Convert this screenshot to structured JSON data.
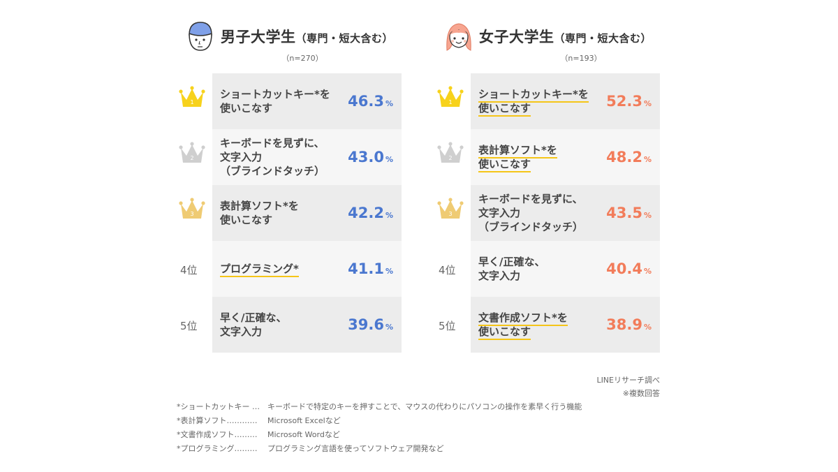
{
  "chart_data": [
    {
      "type": "table",
      "title": "男子大学生",
      "subtitle": "（専門・短大含む）",
      "n_label": "（n=270）",
      "unit": "%",
      "rows": [
        {
          "rank": "1",
          "lines": [
            "ショートカットキー*を",
            "使いこなす"
          ],
          "value": "46.3",
          "underline": false
        },
        {
          "rank": "2",
          "lines": [
            "キーボードを見ずに、",
            "文字入力",
            "（ブラインドタッチ）"
          ],
          "value": "43.0",
          "underline": false
        },
        {
          "rank": "3",
          "lines": [
            "表計算ソフト*を",
            "使いこなす"
          ],
          "value": "42.2",
          "underline": false
        },
        {
          "rank": "4位",
          "lines": [
            "プログラミング*"
          ],
          "value": "41.1",
          "underline": true
        },
        {
          "rank": "5位",
          "lines": [
            "早く/正確な、",
            "文字入力"
          ],
          "value": "39.6",
          "underline": false
        }
      ]
    },
    {
      "type": "table",
      "title": "女子大学生",
      "subtitle": "（専門・短大含む）",
      "n_label": "（n=193）",
      "unit": "%",
      "rows": [
        {
          "rank": "1",
          "lines": [
            "ショートカットキー*を",
            "使いこなす"
          ],
          "value": "52.3",
          "underline": true
        },
        {
          "rank": "2",
          "lines": [
            "表計算ソフト*を",
            "使いこなす"
          ],
          "value": "48.2",
          "underline": true
        },
        {
          "rank": "3",
          "lines": [
            "キーボードを見ずに、",
            "文字入力",
            "（ブラインドタッチ）"
          ],
          "value": "43.5",
          "underline": false
        },
        {
          "rank": "4位",
          "lines": [
            "早く/正確な、",
            "文字入力"
          ],
          "value": "40.4",
          "underline": false
        },
        {
          "rank": "5位",
          "lines": [
            "文書作成ソフト*を",
            "使いこなす"
          ],
          "value": "38.9",
          "underline": true
        }
      ]
    }
  ],
  "crown_colors": {
    "1": "#f7d21c",
    "2": "#cfcfcf",
    "3": "#efcb73"
  },
  "accent_colors": {
    "male": "#4a77cf",
    "female": "#f27c5a",
    "underline": "#f5c518"
  },
  "source": {
    "line1": "LINEリサーチ調べ",
    "line2": "※複数回答"
  },
  "notes": [
    {
      "term": "*ショートカットキー …",
      "desc": "キーボードで特定のキーを押すことで、マウスの代わりにパソコンの操作を素早く行う機能"
    },
    {
      "term": "*表計算ソフト…………",
      "desc": "Microsoft Excelなど"
    },
    {
      "term": "*文書作成ソフト………",
      "desc": "Microsoft Wordなど"
    },
    {
      "term": "*プログラミング………",
      "desc": "プログラミング言語を使ってソフトウェア開発など"
    }
  ]
}
